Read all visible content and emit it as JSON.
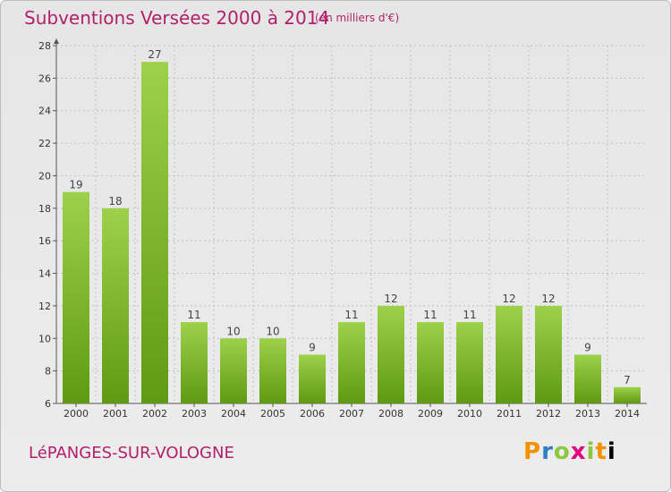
{
  "header": {
    "title": "Subventions Versées 2000 à 2014",
    "subtitle": "(en milliers d'€)"
  },
  "footer": {
    "place": "LéPANGES-SUR-VOLOGNE",
    "brand": "Proxiti"
  },
  "colors": {
    "title": "#b0216a",
    "bar_light": "#9ed14a",
    "bar_dark": "#5e9a12",
    "grid": "#c0c0c0"
  },
  "chart_data": {
    "type": "bar",
    "title": "Subventions Versées 2000 à 2014",
    "subtitle": "(en milliers d'€)",
    "categories": [
      "2000",
      "2001",
      "2002",
      "2003",
      "2004",
      "2005",
      "2006",
      "2007",
      "2008",
      "2009",
      "2010",
      "2011",
      "2012",
      "2013",
      "2014"
    ],
    "values": [
      19,
      18,
      27,
      11,
      10,
      10,
      9,
      11,
      12,
      11,
      11,
      12,
      12,
      9,
      7
    ],
    "ylim": [
      6,
      28
    ],
    "yticks": [
      6,
      8,
      10,
      12,
      14,
      16,
      18,
      20,
      22,
      24,
      26,
      28
    ],
    "grid": true,
    "xlabel": "",
    "ylabel": ""
  }
}
